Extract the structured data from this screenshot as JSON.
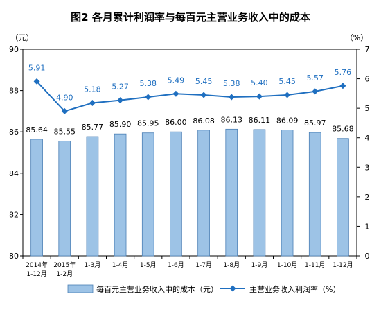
{
  "chart_data": {
    "type": "bar+line",
    "title": "图2  各月累计利润率与每百元主营业务收入中的成本",
    "left_unit": "（元）",
    "right_unit": "（%）",
    "categories": [
      [
        "2014年",
        "1-12月"
      ],
      [
        "2015年",
        "1-2月"
      ],
      [
        "1-3月"
      ],
      [
        "1-4月"
      ],
      [
        "1-5月"
      ],
      [
        "1-6月"
      ],
      [
        "1-7月"
      ],
      [
        "1-8月"
      ],
      [
        "1-9月"
      ],
      [
        "1-10月"
      ],
      [
        "1-11月"
      ],
      [
        "1-12月"
      ]
    ],
    "left_axis": {
      "ticks": [
        80,
        82,
        84,
        86,
        88,
        90
      ],
      "ylim": [
        80,
        90
      ]
    },
    "right_axis": {
      "ticks": [
        0,
        1,
        2,
        3,
        4,
        5,
        6,
        7
      ],
      "ylim": [
        0,
        7
      ]
    },
    "series": [
      {
        "name": "每百元主营业务收入中的成本（元）",
        "type": "bar",
        "axis": "left",
        "values": [
          85.64,
          85.55,
          85.77,
          85.9,
          85.95,
          86.0,
          86.08,
          86.13,
          86.11,
          86.09,
          85.97,
          85.68
        ],
        "labels": [
          "85.64",
          "85.55",
          "85.77",
          "85.90",
          "85.95",
          "86.00",
          "86.08",
          "86.13",
          "86.11",
          "86.09",
          "85.97",
          "85.68"
        ],
        "color": "#9dc3e6"
      },
      {
        "name": "主营业务收入利润率（%）",
        "type": "line",
        "axis": "right",
        "values": [
          5.91,
          4.9,
          5.18,
          5.27,
          5.38,
          5.49,
          5.45,
          5.38,
          5.4,
          5.45,
          5.57,
          5.76
        ],
        "labels": [
          "5.91",
          "4.90",
          "5.18",
          "5.27",
          "5.38",
          "5.49",
          "5.45",
          "5.38",
          "5.40",
          "5.45",
          "5.57",
          "5.76"
        ],
        "color": "#1f6fc0"
      }
    ],
    "legend_position": "bottom",
    "grid": false
  }
}
